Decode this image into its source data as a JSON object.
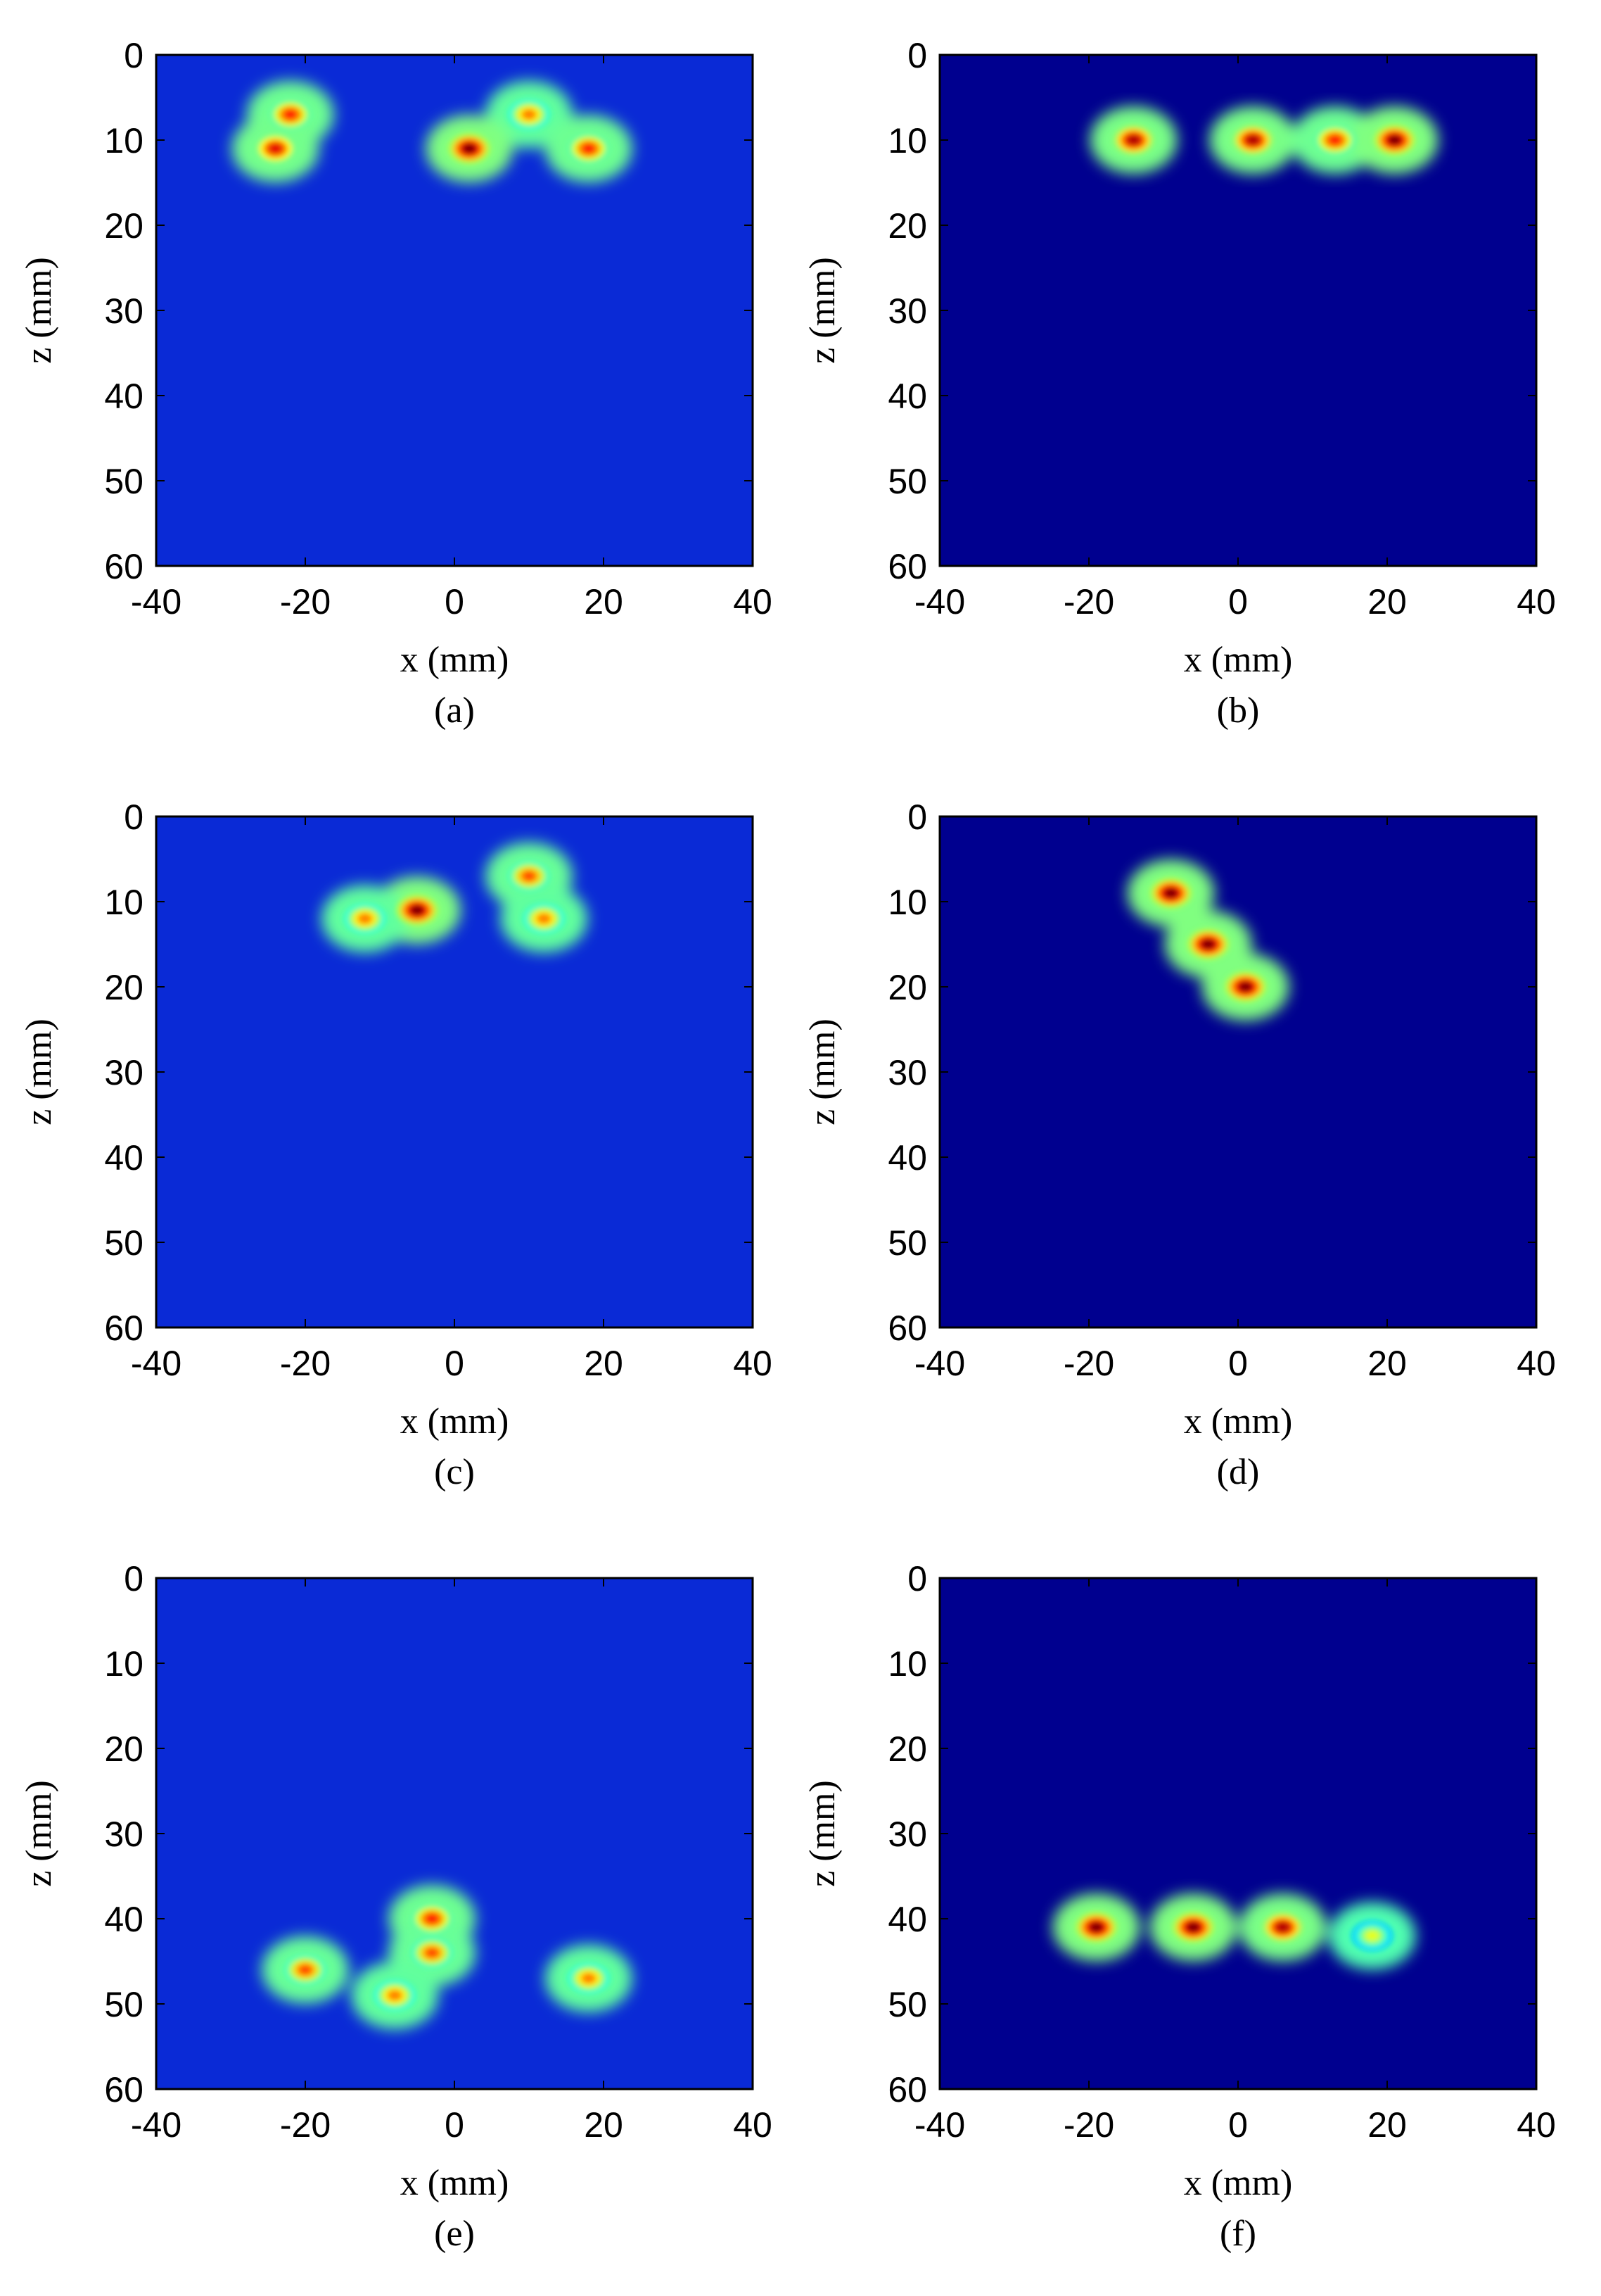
{
  "chart_data": [
    {
      "type": "heatmap",
      "panel_label": "(a)",
      "xlabel": "x (mm)",
      "ylabel": "z (mm)",
      "xlim": [
        -40,
        40
      ],
      "ylim": [
        0,
        60
      ],
      "xticks": [
        "-40",
        "-20",
        "0",
        "20",
        "40"
      ],
      "yticks": [
        "0",
        "10",
        "20",
        "30",
        "40",
        "50",
        "60"
      ],
      "colormap": "jet",
      "background": "#0a2ad6",
      "hot_spots": [
        {
          "x": -22,
          "z": 7,
          "intensity": 0.85
        },
        {
          "x": 10,
          "z": 7,
          "intensity": 0.75
        },
        {
          "x": -24,
          "z": 11,
          "intensity": 0.9
        },
        {
          "x": 2,
          "z": 11,
          "intensity": 1.0
        },
        {
          "x": 18,
          "z": 11,
          "intensity": 0.85
        }
      ]
    },
    {
      "type": "heatmap",
      "panel_label": "(b)",
      "xlabel": "x (mm)",
      "ylabel": "z (mm)",
      "xlim": [
        -40,
        40
      ],
      "ylim": [
        0,
        60
      ],
      "xticks": [
        "-40",
        "-20",
        "0",
        "20",
        "40"
      ],
      "yticks": [
        "0",
        "10",
        "20",
        "30",
        "40",
        "50",
        "60"
      ],
      "colormap": "jet",
      "background": "#00008f",
      "hot_spots": [
        {
          "x": -14,
          "z": 10,
          "intensity": 0.95
        },
        {
          "x": 2,
          "z": 10,
          "intensity": 0.95
        },
        {
          "x": 13,
          "z": 10,
          "intensity": 0.85
        },
        {
          "x": 21,
          "z": 10,
          "intensity": 1.0
        }
      ]
    },
    {
      "type": "heatmap",
      "panel_label": "(c)",
      "xlabel": "x (mm)",
      "ylabel": "z (mm)",
      "xlim": [
        -40,
        40
      ],
      "ylim": [
        0,
        60
      ],
      "xticks": [
        "-40",
        "-20",
        "0",
        "20",
        "40"
      ],
      "yticks": [
        "0",
        "10",
        "20",
        "30",
        "40",
        "50",
        "60"
      ],
      "colormap": "jet",
      "background": "#0a2ad6",
      "hot_spots": [
        {
          "x": -5,
          "z": 11,
          "intensity": 1.0
        },
        {
          "x": 10,
          "z": 7,
          "intensity": 0.8
        },
        {
          "x": -12,
          "z": 12,
          "intensity": 0.75
        },
        {
          "x": 12,
          "z": 12,
          "intensity": 0.75
        }
      ]
    },
    {
      "type": "heatmap",
      "panel_label": "(d)",
      "xlabel": "x (mm)",
      "ylabel": "z (mm)",
      "xlim": [
        -40,
        40
      ],
      "ylim": [
        0,
        60
      ],
      "xticks": [
        "-40",
        "-20",
        "0",
        "20",
        "40"
      ],
      "yticks": [
        "0",
        "10",
        "20",
        "30",
        "40",
        "50",
        "60"
      ],
      "colormap": "jet",
      "background": "#00008f",
      "hot_spots": [
        {
          "x": -9,
          "z": 9,
          "intensity": 1.0
        },
        {
          "x": -4,
          "z": 15,
          "intensity": 1.0
        },
        {
          "x": 1,
          "z": 20,
          "intensity": 1.0
        }
      ]
    },
    {
      "type": "heatmap",
      "panel_label": "(e)",
      "xlabel": "x (mm)",
      "ylabel": "z (mm)",
      "xlim": [
        -40,
        40
      ],
      "ylim": [
        0,
        60
      ],
      "xticks": [
        "-40",
        "-20",
        "0",
        "20",
        "40"
      ],
      "yticks": [
        "0",
        "10",
        "20",
        "30",
        "40",
        "50",
        "60"
      ],
      "colormap": "jet",
      "background": "#0a2ad6",
      "hot_spots": [
        {
          "x": -3,
          "z": 40,
          "intensity": 0.85
        },
        {
          "x": -3,
          "z": 44,
          "intensity": 0.8
        },
        {
          "x": -20,
          "z": 46,
          "intensity": 0.8
        },
        {
          "x": 18,
          "z": 47,
          "intensity": 0.75
        },
        {
          "x": -8,
          "z": 49,
          "intensity": 0.75
        }
      ]
    },
    {
      "type": "heatmap",
      "panel_label": "(f)",
      "xlabel": "x (mm)",
      "ylabel": "z (mm)",
      "xlim": [
        -40,
        40
      ],
      "ylim": [
        0,
        60
      ],
      "xticks": [
        "-40",
        "-20",
        "0",
        "20",
        "40"
      ],
      "yticks": [
        "0",
        "10",
        "20",
        "30",
        "40",
        "50",
        "60"
      ],
      "colormap": "jet",
      "background": "#00008f",
      "hot_spots": [
        {
          "x": -19,
          "z": 41,
          "intensity": 1.0
        },
        {
          "x": -6,
          "z": 41,
          "intensity": 1.0
        },
        {
          "x": 6,
          "z": 41,
          "intensity": 0.95
        },
        {
          "x": 18,
          "z": 42,
          "intensity": 0.6
        }
      ]
    }
  ]
}
